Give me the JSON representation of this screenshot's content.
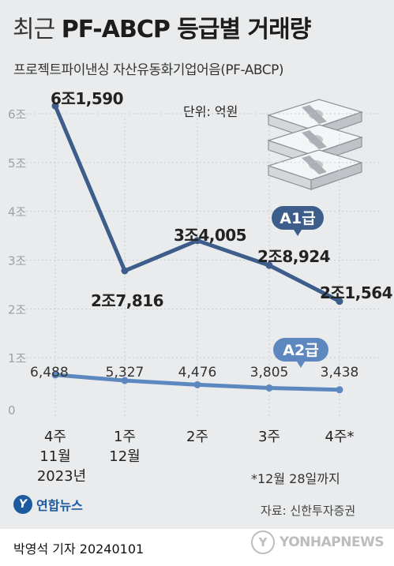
{
  "header": {
    "title_light": "최근",
    "title_bold": "PF-ABCP 등급별 거래량",
    "subtitle": "프로젝트파이낸싱 자산유동화기업어음(PF-ABCP)"
  },
  "chart_data": {
    "type": "line",
    "unit_label": "단위: 억원",
    "x_labels": [
      [
        "4주",
        "11월",
        "2023년"
      ],
      [
        "1주",
        "12월"
      ],
      [
        "2주"
      ],
      [
        "3주"
      ],
      [
        "4주*"
      ]
    ],
    "y_ticks": [
      "0",
      "1조",
      "2조",
      "3조",
      "4조",
      "5조",
      "6조"
    ],
    "ylim": [
      0,
      60000
    ],
    "series": [
      {
        "name": "A1급",
        "values": [
          61590,
          27816,
          34005,
          28924,
          21564
        ],
        "labels": [
          "6조1,590",
          "2조7,816",
          "3조4,005",
          "2조8,924",
          "2조1,564"
        ]
      },
      {
        "name": "A2급",
        "values": [
          6488,
          5327,
          4476,
          3805,
          3438
        ],
        "labels": [
          "6,488",
          "5,327",
          "4,476",
          "3,805",
          "3,438"
        ]
      }
    ]
  },
  "footnote": "*12월 28일까지",
  "source": "자료: 신한투자증권",
  "logo": {
    "mark": "Y",
    "text": "연합뉴스"
  },
  "byline": "박영석 기자  20240101",
  "watermark": "YONHAPNEWS",
  "colors": {
    "a1": "#3d5d8a",
    "a2": "#5c87bf",
    "label": "#222222",
    "grid": "#c9ccd0"
  }
}
